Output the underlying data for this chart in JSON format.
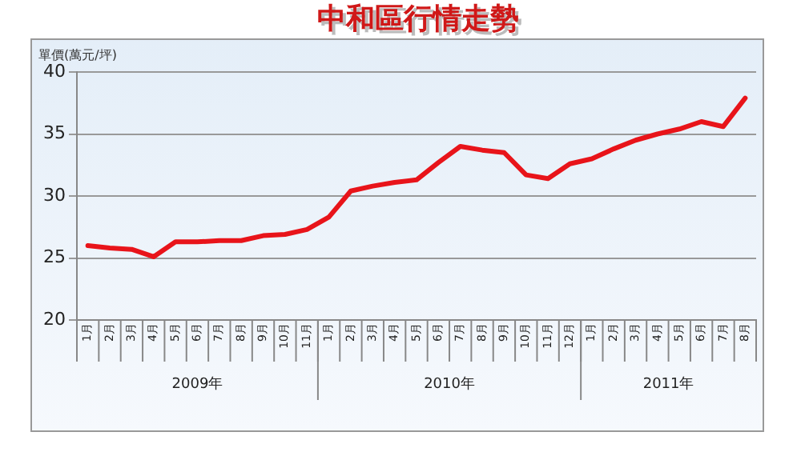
{
  "chart_data": {
    "type": "line",
    "title": "中和區行情走勢",
    "ylabel": "單價(萬元/坪)",
    "categories": [
      "1月",
      "2月",
      "3月",
      "4月",
      "5月",
      "6月",
      "7月",
      "8月",
      "9月",
      "10月",
      "11月",
      "1月",
      "2月",
      "3月",
      "4月",
      "5月",
      "6月",
      "7月",
      "8月",
      "9月",
      "10月",
      "11月",
      "12月",
      "1月",
      "2月",
      "3月",
      "4月",
      "5月",
      "6月",
      "7月",
      "8月"
    ],
    "annotations": [
      "2009年",
      "2010年",
      "2011年"
    ],
    "series": [
      {
        "color": "#e8141a",
        "values": [
          26.0,
          25.8,
          25.7,
          25.1,
          26.3,
          26.3,
          26.4,
          26.4,
          26.8,
          26.9,
          27.3,
          28.3,
          30.4,
          30.8,
          31.1,
          31.3,
          32.7,
          34.0,
          33.7,
          33.5,
          31.7,
          31.4,
          32.6,
          33.0,
          33.8,
          34.5,
          35.0,
          35.4,
          36.0,
          35.6,
          37.9
        ]
      }
    ],
    "ylim": [
      20,
      40
    ],
    "yticks": [
      20,
      25,
      30,
      35,
      40
    ],
    "grid": "y",
    "legend": false,
    "marker": "none",
    "line_style": "solid"
  }
}
